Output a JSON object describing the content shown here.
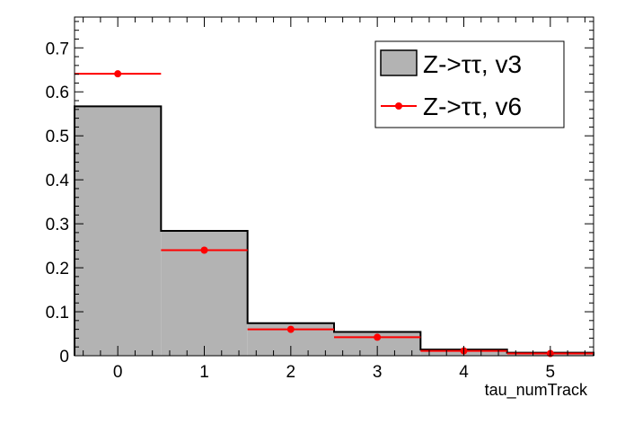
{
  "chart_data": {
    "type": "bar",
    "xlabel": "tau_numTrack",
    "ylabel": "",
    "xlim": [
      -0.5,
      5.5
    ],
    "ylim": [
      0,
      0.77
    ],
    "x_ticks": [
      0,
      1,
      2,
      3,
      4,
      5
    ],
    "y_ticks": [
      0,
      0.1,
      0.2,
      0.3,
      0.4,
      0.5,
      0.6,
      0.7
    ],
    "x_tick_labels": [
      "0",
      "1",
      "2",
      "3",
      "4",
      "5"
    ],
    "y_tick_labels": [
      "0",
      "0.1",
      "0.2",
      "0.3",
      "0.4",
      "0.5",
      "0.6",
      "0.7"
    ],
    "categories": [
      "0",
      "1",
      "2",
      "3",
      "4",
      "5"
    ],
    "bin_edges": [
      -0.5,
      0.5,
      1.5,
      2.5,
      3.5,
      4.5,
      5.5
    ],
    "series": [
      {
        "name": "Z->ττ, v3",
        "style": "filled histogram",
        "color": "#b3b3b3",
        "values": [
          0.567,
          0.284,
          0.074,
          0.054,
          0.014,
          0.007
        ]
      },
      {
        "name": "Z->ττ, v6",
        "style": "points with horizontal error bars",
        "color": "#ff0000",
        "values": [
          0.641,
          0.24,
          0.06,
          0.042,
          0.011,
          0.005
        ]
      }
    ],
    "legend_position": "top-right",
    "grid": false
  }
}
